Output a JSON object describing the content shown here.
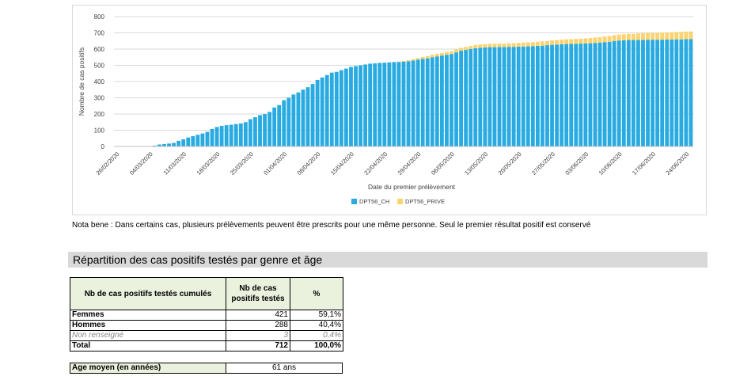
{
  "chart_data": {
    "type": "bar",
    "stacked": true,
    "title": "",
    "xlabel": "Date du premier prélèvement",
    "ylabel": "Nombre de cas positifs",
    "ylim": [
      0,
      800
    ],
    "yticks": [
      0,
      100,
      200,
      300,
      400,
      500,
      600,
      700,
      800
    ],
    "grid": "horizontal",
    "legend_position": "bottom",
    "xtick_labels": [
      "26/02/2020",
      "04/03/2020",
      "11/03/2020",
      "18/03/2020",
      "25/03/2020",
      "01/04/2020",
      "08/04/2020",
      "15/04/2020",
      "22/04/2020",
      "29/04/2020",
      "06/05/2020",
      "13/05/2020",
      "20/05/2020",
      "27/05/2020",
      "03/06/2020",
      "10/06/2020",
      "17/06/2020",
      "24/06/2020"
    ],
    "x_start": "26/02/2020",
    "x_end": "25/06/2020",
    "colors": {
      "DPT56_CH": "#29abe2",
      "DPT56_PRIVE": "#fcd36e"
    },
    "series": [
      {
        "name": "DPT56_CH",
        "values": [
          0,
          0,
          0,
          0,
          0,
          0,
          0,
          0,
          5,
          12,
          15,
          18,
          22,
          35,
          44,
          55,
          64,
          72,
          80,
          90,
          108,
          120,
          127,
          131,
          134,
          138,
          142,
          150,
          168,
          180,
          193,
          200,
          213,
          240,
          255,
          285,
          300,
          320,
          333,
          350,
          365,
          385,
          410,
          425,
          440,
          455,
          460,
          470,
          480,
          490,
          495,
          500,
          505,
          510,
          512,
          515,
          516,
          518,
          520,
          521,
          523,
          525,
          530,
          535,
          540,
          543,
          550,
          555,
          560,
          565,
          570,
          580,
          590,
          595,
          600,
          605,
          608,
          610,
          612,
          612,
          613,
          613,
          614,
          614,
          615,
          616,
          617,
          618,
          620,
          621,
          624,
          626,
          628,
          630,
          631,
          632,
          633,
          634,
          635,
          636,
          638,
          640,
          643,
          645,
          650,
          653,
          655,
          656,
          656,
          657,
          657,
          658,
          658,
          658,
          658,
          659,
          659,
          660,
          660,
          661,
          661
        ]
      },
      {
        "name": "DPT56_PRIVE",
        "values": [
          0,
          0,
          0,
          0,
          0,
          0,
          0,
          0,
          0,
          0,
          0,
          0,
          0,
          0,
          0,
          0,
          0,
          0,
          0,
          0,
          0,
          0,
          0,
          0,
          0,
          0,
          0,
          0,
          0,
          0,
          0,
          0,
          0,
          0,
          0,
          0,
          0,
          0,
          0,
          0,
          0,
          0,
          0,
          0,
          0,
          0,
          0,
          0,
          0,
          0,
          0,
          0,
          0,
          0,
          0,
          0,
          0,
          0,
          0,
          2,
          4,
          6,
          8,
          10,
          12,
          14,
          15,
          16,
          16,
          17,
          17,
          18,
          18,
          18,
          19,
          20,
          20,
          20,
          20,
          21,
          21,
          21,
          22,
          22,
          23,
          24,
          24,
          24,
          25,
          26,
          26,
          27,
          28,
          28,
          29,
          29,
          30,
          30,
          31,
          32,
          33,
          34,
          34,
          35,
          36,
          37,
          37,
          38,
          38,
          39,
          40,
          40,
          41,
          42,
          42,
          43,
          44,
          45,
          46,
          47,
          48
        ]
      }
    ]
  },
  "nota": "Nota bene : Dans certains cas, plusieurs prélèvements peuvent être prescrits pour une même personne. Seul le premier résultat positif est conservé",
  "section_title": "Répartition des cas positifs testés par genre et âge",
  "table": {
    "headers": [
      "Nb de cas positifs testés cumulés",
      "Nb de cas positifs testés",
      "%"
    ],
    "rows": [
      {
        "label": "Femmes",
        "count": "421",
        "pct": "59,1%"
      },
      {
        "label": "Hommes",
        "count": "288",
        "pct": "40,4%"
      },
      {
        "label": "Non renseigné",
        "count": "3",
        "pct": "0,4%"
      },
      {
        "label": "Total",
        "count": "712",
        "pct": "100,0%"
      }
    ]
  },
  "age": {
    "label": "Age moyen (en années)",
    "value": "61",
    "unit": "ans"
  }
}
